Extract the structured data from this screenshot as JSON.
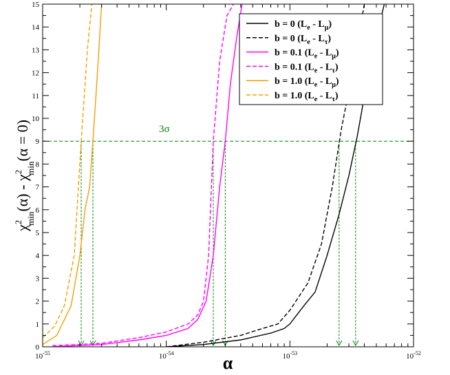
{
  "chart_data": {
    "type": "line",
    "xlabel": "α",
    "ylabel": "χ²min(α) - χ²min(α = 0)",
    "xscale": "log",
    "xlim": [
      1e-55,
      1e-52
    ],
    "ylim": [
      0,
      15
    ],
    "x_ticks": [
      {
        "value": 1e-55,
        "base": "10",
        "exp": "-55"
      },
      {
        "value": 1e-54,
        "base": "10",
        "exp": "-54"
      },
      {
        "value": 1e-53,
        "base": "10",
        "exp": "-53"
      },
      {
        "value": 1e-52,
        "base": "10",
        "exp": "-52"
      }
    ],
    "y_ticks": [
      0,
      1,
      2,
      3,
      4,
      5,
      6,
      7,
      8,
      9,
      10,
      11,
      12,
      13,
      14,
      15
    ],
    "grid": false,
    "legend_position": "top-right",
    "threshold": {
      "y": 9,
      "label": "3σ",
      "color": "#008000"
    },
    "crossing_markers": [
      2.05e-55,
      2.55e-55,
      2.4e-54,
      3e-54,
      2.5e-53,
      3.4e-53
    ],
    "series": [
      {
        "name": "b = 0  (Le - Lμ)",
        "legend": {
          "prefix": "b = 0  (L",
          "sub1": "e",
          "mid": " - L",
          "sub2": "μ",
          "suffix": ")"
        },
        "color": "#000000",
        "dash": "solid",
        "points": [
          [
            1e-54,
            0
          ],
          [
            2e-54,
            0.1
          ],
          [
            4e-54,
            0.3
          ],
          [
            7e-54,
            0.6
          ],
          [
            9e-54,
            0.8
          ],
          [
            1e-53,
            1.0
          ],
          [
            1.3e-53,
            1.8
          ],
          [
            1.6e-53,
            2.4
          ],
          [
            2e-53,
            4.0
          ],
          [
            2.5e-53,
            5.8
          ],
          [
            3e-53,
            7.5
          ],
          [
            3.5e-53,
            9.2
          ],
          [
            4.5e-53,
            12.5
          ],
          [
            5.8e-53,
            15
          ]
        ]
      },
      {
        "name": "b = 0  (Le - Lτ)",
        "legend": {
          "prefix": "b = 0  (L",
          "sub1": "e",
          "mid": " - L",
          "sub2": "τ",
          "suffix": ")"
        },
        "color": "#000000",
        "dash": "dashed",
        "points": [
          [
            1e-54,
            0
          ],
          [
            2e-54,
            0.2
          ],
          [
            4e-54,
            0.5
          ],
          [
            6e-54,
            0.8
          ],
          [
            8e-54,
            1.0
          ],
          [
            1e-53,
            1.6
          ],
          [
            1.4e-53,
            2.8
          ],
          [
            1.8e-53,
            4.5
          ],
          [
            2.2e-53,
            7.0
          ],
          [
            2.6e-53,
            9.5
          ],
          [
            3.2e-53,
            12.0
          ],
          [
            4e-53,
            15
          ]
        ]
      },
      {
        "name": "b = 0.1 (Le - Lμ)",
        "legend": {
          "prefix": "b = 0.1 (L",
          "sub1": "e",
          "mid": " - L",
          "sub2": "μ",
          "suffix": ")"
        },
        "color": "#ff00ff",
        "dash": "solid",
        "points": [
          [
            1.2e-55,
            0
          ],
          [
            3e-55,
            0.1
          ],
          [
            6e-55,
            0.3
          ],
          [
            1e-54,
            0.5
          ],
          [
            1.5e-54,
            0.8
          ],
          [
            1.8e-54,
            1.2
          ],
          [
            2.1e-54,
            2.0
          ],
          [
            2.4e-54,
            4.0
          ],
          [
            2.7e-54,
            7.0
          ],
          [
            3e-54,
            9.0
          ],
          [
            3.3e-54,
            11.5
          ],
          [
            3.7e-54,
            13.5
          ],
          [
            4.1e-54,
            15
          ]
        ]
      },
      {
        "name": "b = 0.1 (Le - Lτ)",
        "legend": {
          "prefix": "b = 0.1 (L",
          "sub1": "e",
          "mid": " - L",
          "sub2": "τ",
          "suffix": ")"
        },
        "color": "#ff00ff",
        "dash": "dashed",
        "points": [
          [
            1.2e-55,
            0.05
          ],
          [
            3e-55,
            0.15
          ],
          [
            6e-55,
            0.4
          ],
          [
            1e-54,
            0.65
          ],
          [
            1.5e-54,
            1.0
          ],
          [
            1.8e-54,
            1.4
          ],
          [
            2e-54,
            2.0
          ],
          [
            2.2e-54,
            4.0
          ],
          [
            2.4e-54,
            9.0
          ],
          [
            2.7e-54,
            12.5
          ],
          [
            3.1e-54,
            14.5
          ],
          [
            3.5e-54,
            15
          ]
        ]
      },
      {
        "name": "b = 1.0  (Le - Lμ)",
        "legend": {
          "prefix": "b = 1.0  (L",
          "sub1": "e",
          "mid": " - L",
          "sub2": "μ",
          "suffix": ")"
        },
        "color": "#f2a000",
        "dash": "solid",
        "points": [
          [
            1e-55,
            0.1
          ],
          [
            1.3e-55,
            0.5
          ],
          [
            1.7e-55,
            1.8
          ],
          [
            2e-55,
            4.0
          ],
          [
            2.2e-55,
            6.0
          ],
          [
            2.4e-55,
            7.0
          ],
          [
            2.55e-55,
            9.0
          ],
          [
            2.7e-55,
            11.0
          ],
          [
            2.85e-55,
            13.0
          ],
          [
            3e-55,
            15
          ]
        ]
      },
      {
        "name": "b = 1.0  (Le - Lτ)",
        "legend": {
          "prefix": "b = 1.0  (L",
          "sub1": "e",
          "mid": " - L",
          "sub2": "τ",
          "suffix": ")"
        },
        "color": "#f2a000",
        "dash": "dashed",
        "points": [
          [
            1e-55,
            0.4
          ],
          [
            1.25e-55,
            0.9
          ],
          [
            1.5e-55,
            1.8
          ],
          [
            1.8e-55,
            4.0
          ],
          [
            2.05e-55,
            9.0
          ],
          [
            2.3e-55,
            13.0
          ],
          [
            2.5e-55,
            15
          ]
        ]
      }
    ]
  }
}
